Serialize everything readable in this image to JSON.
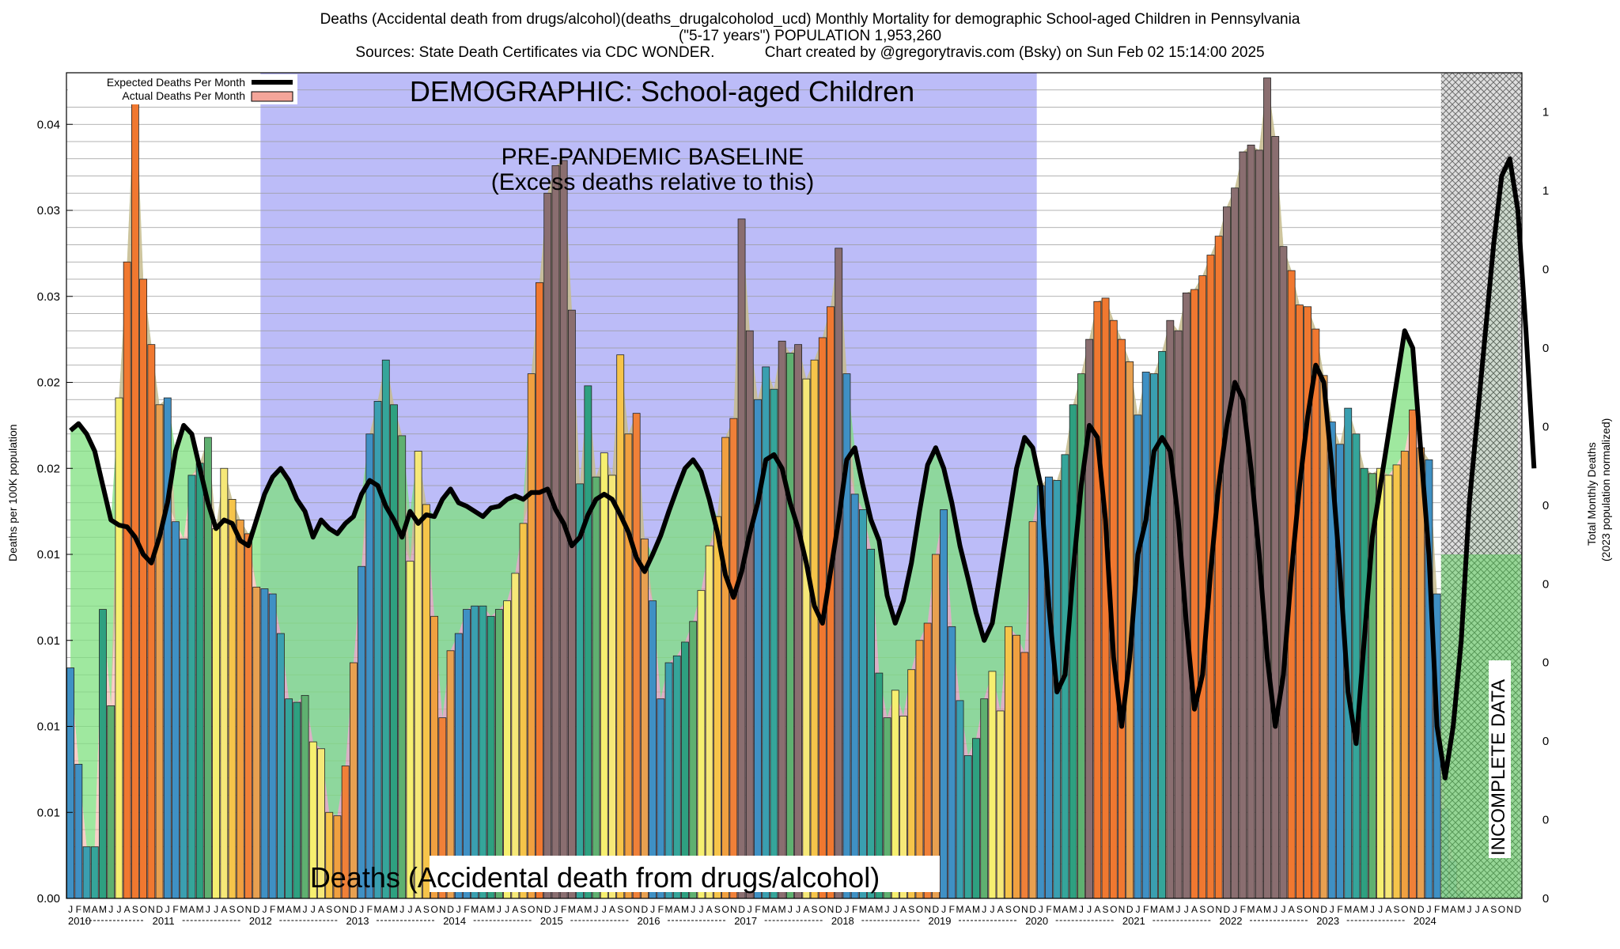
{
  "header": {
    "line1": "Deaths (Accidental death from drugs/alcohol)(deaths_drugalcoholod_ucd) Monthly Mortality for demographic School-aged Children in Pennsylvania",
    "line2": "(\"5-17 years\") POPULATION 1,953,260",
    "line3": "Sources: State Death Certificates via CDC WONDER.            Chart created by @gregorytravis.com (Bsky) on Sun Feb 02 15:14:00 2025"
  },
  "chart_data": {
    "type": "bar",
    "title": "Deaths (Accidental death from drugs/alcohol)(deaths_drugalcoholod_ucd) Monthly Mortality for demographic School-aged Children in Pennsylvania",
    "ylabel": "Deaths per 100K population",
    "y2label": "Total Monthly Deaths",
    "y2label_sub": "(2023 population normalized)",
    "ylim": [
      0,
      0.048
    ],
    "y_tick_values": [
      0,
      0.005,
      0.01,
      0.015,
      0.02,
      0.025,
      0.03,
      0.035,
      0.04,
      0.045
    ],
    "y_tick_labels": [
      "0.00",
      "0.01",
      "0.01",
      "0.01",
      "0.01",
      "0.02",
      "0.02",
      "0.03",
      "0.03",
      "0.04"
    ],
    "y2_tick_labels": [
      "0",
      "0",
      "0",
      "0",
      "0",
      "0",
      "0",
      "0",
      "0",
      "1",
      "1",
      "1"
    ],
    "years": [
      "2010",
      "2011",
      "2012",
      "2013",
      "2014",
      "2015",
      "2016",
      "2017",
      "2018",
      "2019",
      "2020",
      "2021",
      "2022",
      "2023",
      "2024"
    ],
    "month_letters": [
      "J",
      "F",
      "M",
      "A",
      "M",
      "J",
      "J",
      "A",
      "S",
      "O",
      "N",
      "D"
    ],
    "grid": true,
    "legend": {
      "placement": "top-left",
      "items": [
        {
          "label": "Expected Deaths Per Month",
          "color": "#000000"
        },
        {
          "label": "Actual Deaths Per Month",
          "color": "#f4a59a"
        }
      ]
    },
    "annotations": {
      "demographic": "DEMOGRAPHIC: School-aged Children",
      "baseline_line1": "PRE-PANDEMIC BASELINE",
      "baseline_line2": "(Excess deaths relative to this)",
      "incomplete": "INCOMPLETE DATA",
      "bottom": "Deaths (Accidental death from drugs/alcohol)"
    },
    "baseline_period": {
      "start_month_index": 24,
      "end_month_index": 120
    },
    "incomplete_period": {
      "start_month_index": 170,
      "end_month_index": 180
    },
    "series": [
      {
        "name": "Actual Deaths Per Month",
        "values": [
          0.0134,
          0.0078,
          0.003,
          0.003,
          0.0168,
          0.0112,
          0.0291,
          0.037,
          0.0477,
          0.036,
          0.0322,
          0.0287,
          0.0291,
          0.0219,
          0.0209,
          0.0246,
          0.0253,
          0.0268,
          0.0215,
          0.025,
          0.0232,
          0.022,
          0.0212,
          0.0181,
          0.018,
          0.0177,
          0.0154,
          0.0116,
          0.0114,
          0.0118,
          0.0091,
          0.0087,
          0.005,
          0.0048,
          0.0077,
          0.0137,
          0.0193,
          0.027,
          0.0289,
          0.0313,
          0.0287,
          0.0269,
          0.0196,
          0.026,
          0.0229,
          0.0164,
          0.0105,
          0.0144,
          0.0154,
          0.0168,
          0.017,
          0.017,
          0.0164,
          0.0168,
          0.0173,
          0.0189,
          0.0218,
          0.0305,
          0.0358,
          0.041,
          0.0426,
          0.0429,
          0.0342,
          0.0241,
          0.0298,
          0.0245,
          0.0259,
          0.0246,
          0.0316,
          0.027,
          0.0282,
          0.0209,
          0.0173,
          0.0116,
          0.0137,
          0.0141,
          0.0149,
          0.0161,
          0.0179,
          0.0205,
          0.0222,
          0.0268,
          0.0279,
          0.0395,
          0.033,
          0.029,
          0.0309,
          0.0296,
          0.0324,
          0.0317,
          0.0322,
          0.0302,
          0.0313,
          0.0326,
          0.0344,
          0.0378,
          0.0305,
          0.0235,
          0.0226,
          0.0203,
          0.0131,
          0.0105,
          0.0121,
          0.0106,
          0.0133,
          0.015,
          0.016,
          0.02,
          0.0226,
          0.0158,
          0.0115,
          0.0083,
          0.0093,
          0.0116,
          0.0132,
          0.0109,
          0.0158,
          0.0153,
          0.0143,
          0.0219,
          0.024,
          0.0245,
          0.0243,
          0.0258,
          0.0287,
          0.0305,
          0.0325,
          0.0347,
          0.0349,
          0.0336,
          0.0325,
          0.0312,
          0.0281,
          0.0306,
          0.0305,
          0.0318,
          0.0336,
          0.033,
          0.0352,
          0.0354,
          0.0362,
          0.0374,
          0.0385,
          0.0402,
          0.0413,
          0.0434,
          0.0438,
          0.0435,
          0.0477,
          0.0443,
          0.0379,
          0.0365,
          0.0345,
          0.0344,
          0.0331,
          0.0304,
          0.0277,
          0.0264,
          0.0285,
          0.027,
          0.025,
          0.0247,
          0.025,
          0.0246,
          0.0252,
          0.026,
          0.0284,
          0.0262,
          0.0255,
          0.0177,
          0.0052,
          0.0022,
          0.0004
        ]
      },
      {
        "name": "Expected Deaths Per Month",
        "values": [
          0.0272,
          0.0276,
          0.027,
          0.026,
          0.024,
          0.022,
          0.0217,
          0.0216,
          0.021,
          0.02,
          0.0195,
          0.021,
          0.023,
          0.026,
          0.0275,
          0.027,
          0.025,
          0.023,
          0.0215,
          0.022,
          0.0218,
          0.0208,
          0.0205,
          0.022,
          0.0235,
          0.0245,
          0.025,
          0.0243,
          0.0232,
          0.0225,
          0.021,
          0.022,
          0.0215,
          0.0212,
          0.0218,
          0.0222,
          0.0235,
          0.0243,
          0.024,
          0.0228,
          0.022,
          0.021,
          0.0225,
          0.0218,
          0.0223,
          0.0222,
          0.0232,
          0.0238,
          0.023,
          0.0228,
          0.0225,
          0.0222,
          0.0227,
          0.0228,
          0.0232,
          0.0234,
          0.0232,
          0.0236,
          0.0236,
          0.0238,
          0.0226,
          0.0218,
          0.0205,
          0.021,
          0.0223,
          0.0232,
          0.0235,
          0.0232,
          0.0223,
          0.0213,
          0.0198,
          0.019,
          0.02,
          0.0211,
          0.0225,
          0.0238,
          0.025,
          0.0255,
          0.0248,
          0.0232,
          0.0213,
          0.0188,
          0.0175,
          0.019,
          0.0212,
          0.023,
          0.0255,
          0.0258,
          0.025,
          0.023,
          0.0215,
          0.0195,
          0.017,
          0.016,
          0.019,
          0.022,
          0.0255,
          0.0262,
          0.024,
          0.022,
          0.0208,
          0.0176,
          0.016,
          0.0173,
          0.0195,
          0.0225,
          0.0252,
          0.0262,
          0.025,
          0.023,
          0.0205,
          0.0186,
          0.0166,
          0.015,
          0.016,
          0.019,
          0.022,
          0.025,
          0.0268,
          0.0262,
          0.024,
          0.017,
          0.012,
          0.013,
          0.019,
          0.024,
          0.0275,
          0.0268,
          0.022,
          0.014,
          0.01,
          0.014,
          0.02,
          0.022,
          0.026,
          0.0268,
          0.026,
          0.022,
          0.016,
          0.011,
          0.013,
          0.019,
          0.024,
          0.0275,
          0.03,
          0.029,
          0.025,
          0.02,
          0.014,
          0.01,
          0.013,
          0.019,
          0.024,
          0.028,
          0.031,
          0.03,
          0.025,
          0.019,
          0.012,
          0.009,
          0.015,
          0.021,
          0.024,
          0.027,
          0.03,
          0.033,
          0.032,
          0.026,
          0.02,
          0.01,
          0.007,
          0.01,
          0.015,
          0.023,
          0.028,
          0.033,
          0.038,
          0.042,
          0.043,
          0.04,
          0.033,
          0.025
        ]
      }
    ]
  }
}
